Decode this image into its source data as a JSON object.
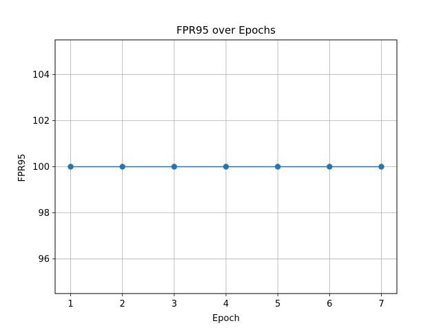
{
  "chart_data": {
    "type": "line",
    "title": "FPR95 over Epochs",
    "xlabel": "Epoch",
    "ylabel": "FPR95",
    "x": [
      1,
      2,
      3,
      4,
      5,
      6,
      7
    ],
    "series": [
      {
        "values": [
          100,
          100,
          100,
          100,
          100,
          100,
          100
        ],
        "color": "#1f77b4",
        "marker": "circle"
      }
    ],
    "xlim": [
      0.7,
      7.3
    ],
    "ylim": [
      94.5,
      105.5
    ],
    "xticks": [
      1,
      2,
      3,
      4,
      5,
      6,
      7
    ],
    "yticks": [
      96,
      98,
      100,
      102,
      104
    ],
    "grid": true,
    "legend": "none"
  }
}
